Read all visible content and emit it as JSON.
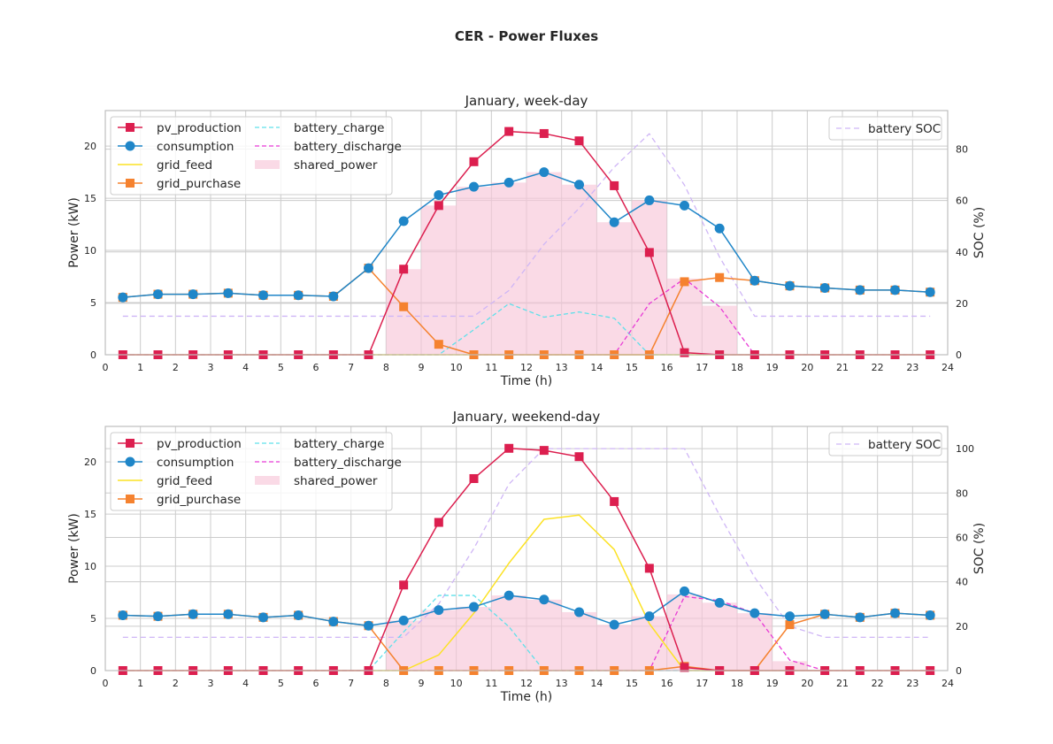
{
  "figure": {
    "suptitle": "CER - Power Fluxes"
  },
  "colors": {
    "pv_production": "#dc1f4f",
    "consumption": "#1f86c8",
    "grid_feed": "#fce224",
    "grid_purchase": "#f5822f",
    "battery_charge": "#5fe0ea",
    "battery_discharge": "#e83ad6",
    "shared_power": "#f7c6d8",
    "battery_soc": "#cfb6f6"
  },
  "chart_data": [
    {
      "type": "line",
      "title": "January, week-day",
      "xlabel": "Time (h)",
      "ylabel": "Power (kW)",
      "ylabel_right": "SOC (%)",
      "xlim": [
        0,
        24
      ],
      "ylim": [
        0,
        23.4
      ],
      "ylim_right": [
        0,
        95
      ],
      "xticks": [
        0,
        1,
        2,
        3,
        4,
        5,
        6,
        7,
        8,
        9,
        10,
        11,
        12,
        13,
        14,
        15,
        16,
        17,
        18,
        19,
        20,
        21,
        22,
        23,
        24
      ],
      "yticks": [
        0,
        5,
        10,
        15,
        20
      ],
      "yticks_right": [
        0,
        20,
        40,
        60,
        80
      ],
      "grid": true,
      "legend_left": [
        "pv_production",
        "consumption",
        "grid_feed",
        "grid_purchase",
        "battery_charge",
        "battery_discharge",
        "shared_power"
      ],
      "legend_right": [
        "battery SOC"
      ],
      "x": [
        0.5,
        1.5,
        2.5,
        3.5,
        4.5,
        5.5,
        6.5,
        7.5,
        8.5,
        9.5,
        10.5,
        11.5,
        12.5,
        13.5,
        14.5,
        15.5,
        16.5,
        17.5,
        18.5,
        19.5,
        20.5,
        21.5,
        22.5,
        23.5
      ],
      "series": [
        {
          "name": "pv_production",
          "values": [
            0,
            0,
            0,
            0,
            0,
            0,
            0,
            0,
            8.2,
            14.3,
            18.5,
            21.4,
            21.2,
            20.5,
            16.2,
            9.8,
            0.2,
            0,
            0,
            0,
            0,
            0,
            0,
            0
          ]
        },
        {
          "name": "consumption",
          "values": [
            5.5,
            5.8,
            5.8,
            5.9,
            5.7,
            5.7,
            5.6,
            8.3,
            12.8,
            15.3,
            16.1,
            16.5,
            17.5,
            16.3,
            12.7,
            14.8,
            14.3,
            12.1,
            7.1,
            6.6,
            6.4,
            6.2,
            6.2,
            6.0
          ]
        },
        {
          "name": "grid_feed",
          "values": [
            0,
            0,
            0,
            0,
            0,
            0,
            0,
            0,
            0,
            0,
            0,
            0,
            0,
            0,
            0,
            0,
            0,
            0,
            0,
            0,
            0,
            0,
            0,
            0
          ]
        },
        {
          "name": "grid_purchase",
          "values": [
            5.5,
            5.8,
            5.8,
            5.9,
            5.7,
            5.7,
            5.6,
            8.3,
            4.6,
            1.0,
            0,
            0,
            0,
            0,
            0,
            0,
            7.0,
            7.4,
            7.1,
            6.6,
            6.4,
            6.2,
            6.2,
            6.0
          ]
        },
        {
          "name": "battery_charge",
          "values": [
            0,
            0,
            0,
            0,
            0,
            0,
            0,
            0,
            0,
            0,
            2.4,
            4.9,
            3.6,
            4.1,
            3.5,
            0,
            0,
            0,
            0,
            0,
            0,
            0,
            0,
            0
          ]
        },
        {
          "name": "battery_discharge",
          "values": [
            0,
            0,
            0,
            0,
            0,
            0,
            0,
            0,
            0,
            0,
            0,
            0,
            0,
            0,
            0,
            4.9,
            7.3,
            4.6,
            0,
            0,
            0,
            0,
            0,
            0
          ]
        },
        {
          "name": "shared_power",
          "type": "bar",
          "values": [
            0,
            0,
            0,
            0,
            0,
            0,
            0,
            0,
            8.2,
            14.3,
            16.1,
            16.5,
            17.5,
            16.3,
            12.7,
            14.8,
            7.3,
            4.7,
            0,
            0,
            0,
            0,
            0,
            0
          ]
        },
        {
          "name": "battery SOC",
          "axis": "right",
          "values": [
            15,
            15,
            15,
            15,
            15,
            15,
            15,
            15,
            15,
            15,
            15,
            25,
            43,
            57,
            73,
            86,
            66,
            38,
            15,
            15,
            15,
            15,
            15,
            15
          ]
        }
      ]
    },
    {
      "type": "line",
      "title": "January, weekend-day",
      "xlabel": "Time (h)",
      "ylabel": "Power (kW)",
      "ylabel_right": "SOC (%)",
      "xlim": [
        0,
        24
      ],
      "ylim": [
        0,
        23.4
      ],
      "ylim_right": [
        0,
        110
      ],
      "xticks": [
        0,
        1,
        2,
        3,
        4,
        5,
        6,
        7,
        8,
        9,
        10,
        11,
        12,
        13,
        14,
        15,
        16,
        17,
        18,
        19,
        20,
        21,
        22,
        23,
        24
      ],
      "yticks": [
        0,
        5,
        10,
        15,
        20
      ],
      "yticks_right": [
        0,
        20,
        40,
        60,
        80,
        100
      ],
      "grid": true,
      "legend_left": [
        "pv_production",
        "consumption",
        "grid_feed",
        "grid_purchase",
        "battery_charge",
        "battery_discharge",
        "shared_power"
      ],
      "legend_right": [
        "battery SOC"
      ],
      "x": [
        0.5,
        1.5,
        2.5,
        3.5,
        4.5,
        5.5,
        6.5,
        7.5,
        8.5,
        9.5,
        10.5,
        11.5,
        12.5,
        13.5,
        14.5,
        15.5,
        16.5,
        17.5,
        18.5,
        19.5,
        20.5,
        21.5,
        22.5,
        23.5
      ],
      "series": [
        {
          "name": "pv_production",
          "values": [
            0,
            0,
            0,
            0,
            0,
            0,
            0,
            0,
            8.2,
            14.2,
            18.4,
            21.3,
            21.1,
            20.5,
            16.2,
            9.8,
            0.3,
            0,
            0,
            0,
            0,
            0,
            0,
            0
          ]
        },
        {
          "name": "consumption",
          "values": [
            5.3,
            5.2,
            5.4,
            5.4,
            5.1,
            5.3,
            4.7,
            4.3,
            4.8,
            5.8,
            6.1,
            7.2,
            6.8,
            5.6,
            4.4,
            5.2,
            7.6,
            6.5,
            5.5,
            5.2,
            5.4,
            5.1,
            5.5,
            5.3
          ]
        },
        {
          "name": "grid_feed",
          "values": [
            0,
            0,
            0,
            0,
            0,
            0,
            0,
            0,
            0,
            1.5,
            5.5,
            10.3,
            14.5,
            14.9,
            11.6,
            4.5,
            0,
            0,
            0,
            0,
            0,
            0,
            0,
            0
          ]
        },
        {
          "name": "grid_purchase",
          "values": [
            5.3,
            5.2,
            5.4,
            5.4,
            5.1,
            5.3,
            4.7,
            4.3,
            0,
            0,
            0,
            0,
            0,
            0,
            0,
            0,
            0.4,
            0,
            0,
            4.4,
            5.4,
            5.1,
            5.5,
            5.3
          ]
        },
        {
          "name": "battery_charge",
          "values": [
            0,
            0,
            0,
            0,
            0,
            0,
            0,
            0,
            3.7,
            7.2,
            7.2,
            4.2,
            0,
            0,
            0,
            0,
            0,
            0,
            0,
            0,
            0,
            0,
            0,
            0
          ]
        },
        {
          "name": "battery_discharge",
          "values": [
            0,
            0,
            0,
            0,
            0,
            0,
            0,
            0,
            0,
            0,
            0,
            0,
            0,
            0,
            0,
            0,
            7.1,
            6.7,
            5.5,
            1.0,
            0,
            0,
            0,
            0
          ]
        },
        {
          "name": "shared_power",
          "type": "bar",
          "values": [
            0,
            0,
            0,
            0,
            0,
            0,
            0,
            0,
            4.8,
            5.8,
            6.1,
            7.2,
            6.8,
            5.6,
            4.4,
            5.2,
            7.3,
            6.5,
            5.5,
            0.9,
            0,
            0,
            0,
            0
          ]
        },
        {
          "name": "battery SOC",
          "axis": "right",
          "values": [
            15,
            15,
            15,
            15,
            15,
            15,
            15,
            15,
            15,
            30,
            55,
            84,
            100,
            100,
            100,
            100,
            100,
            70,
            42,
            20,
            15,
            15,
            15,
            15
          ]
        }
      ]
    }
  ]
}
